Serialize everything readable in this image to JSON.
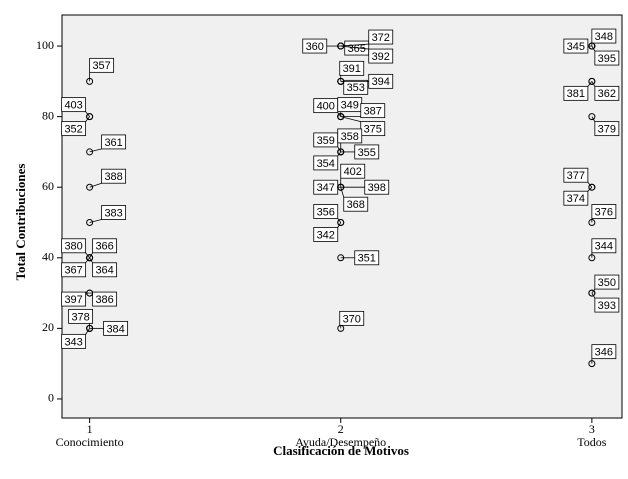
{
  "chart_data": {
    "type": "scatter",
    "x_label": "Clasificación de Motivos",
    "y_label": "Total Contribuciones",
    "x": [
      1,
      1,
      1,
      1,
      1,
      1,
      1,
      1,
      1,
      1,
      1,
      1,
      1,
      1,
      1,
      2,
      2,
      2,
      2,
      2,
      2,
      2,
      2,
      2,
      2,
      2,
      2,
      2,
      2,
      2,
      2,
      2,
      2,
      2,
      2,
      2,
      2,
      2,
      3,
      3,
      3,
      3,
      3,
      3,
      3,
      3,
      3,
      3,
      3,
      3,
      3
    ],
    "values": [
      90,
      80,
      80,
      70,
      60,
      50,
      40,
      40,
      40,
      40,
      30,
      30,
      20,
      20,
      20,
      100,
      100,
      100,
      100,
      90,
      90,
      90,
      80,
      80,
      80,
      80,
      70,
      70,
      70,
      70,
      60,
      60,
      60,
      60,
      50,
      50,
      40,
      20,
      100,
      100,
      100,
      90,
      90,
      80,
      60,
      60,
      50,
      40,
      30,
      30,
      10
    ],
    "point_labels": [
      "357",
      "403",
      "352",
      "361",
      "388",
      "383",
      "380",
      "366",
      "367",
      "364",
      "397",
      "386",
      "378",
      "384",
      "343",
      "360",
      "365",
      "372",
      "392",
      "391",
      "353",
      "394",
      "400",
      "349",
      "387",
      "375",
      "359",
      "358",
      "355",
      "354",
      "402",
      "347",
      "398",
      "368",
      "356",
      "342",
      "351",
      "370",
      "345",
      "348",
      "395",
      "381",
      "362",
      "379",
      "377",
      "374",
      "376",
      "344",
      "350",
      "393",
      "346"
    ],
    "color": "#000000",
    "xlim": [
      0.89,
      3.12
    ],
    "xticks": [
      1,
      2,
      3
    ],
    "categories": [
      "Conocimiento",
      "Ayuda/Desempeño",
      "Todos"
    ],
    "ylim": [
      -5.4,
      108.8
    ],
    "yticks": [
      0,
      20,
      40,
      60,
      80,
      100
    ]
  }
}
